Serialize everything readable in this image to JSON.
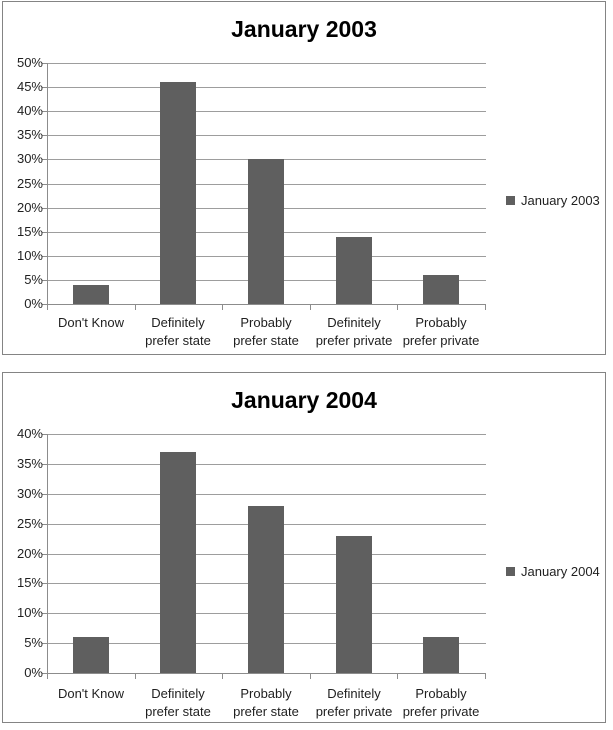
{
  "colors": {
    "bar": "#5f5f5f",
    "gridline": "#9d9d9d",
    "axis": "#8c8c8c",
    "panel_border": "#848484",
    "text": "#1f1f1f",
    "title": "#000000"
  },
  "chart_data": [
    {
      "type": "bar",
      "title": "January 2003",
      "categories": [
        "Don't Know",
        "Definitely prefer state",
        "Probably prefer state",
        "Definitely prefer private",
        "Probably prefer private"
      ],
      "category_lines": [
        [
          "Don't Know"
        ],
        [
          "Definitely",
          "prefer state"
        ],
        [
          "Probably",
          "prefer state"
        ],
        [
          "Definitely",
          "prefer private"
        ],
        [
          "Probably",
          "prefer private"
        ]
      ],
      "values": [
        4,
        46,
        30,
        14,
        6
      ],
      "unit": "%",
      "ylim": [
        0,
        50
      ],
      "ytick_step": 5,
      "yticks": [
        "0%",
        "5%",
        "10%",
        "15%",
        "20%",
        "25%",
        "30%",
        "35%",
        "40%",
        "45%",
        "50%"
      ],
      "xlabel": "",
      "ylabel": "",
      "grid": "horizontal",
      "legend": {
        "label": "January 2003",
        "position": "right"
      }
    },
    {
      "type": "bar",
      "title": "January 2004",
      "categories": [
        "Don't Know",
        "Definitely prefer state",
        "Probably prefer state",
        "Definitely prefer private",
        "Probably prefer private"
      ],
      "category_lines": [
        [
          "Don't Know"
        ],
        [
          "Definitely",
          "prefer state"
        ],
        [
          "Probably",
          "prefer state"
        ],
        [
          "Definitely",
          "prefer private"
        ],
        [
          "Probably",
          "prefer private"
        ]
      ],
      "values": [
        6,
        37,
        28,
        23,
        6
      ],
      "unit": "%",
      "ylim": [
        0,
        40
      ],
      "ytick_step": 5,
      "yticks": [
        "0%",
        "5%",
        "10%",
        "15%",
        "20%",
        "25%",
        "30%",
        "35%",
        "40%"
      ],
      "xlabel": "",
      "ylabel": "",
      "grid": "horizontal",
      "legend": {
        "label": "January 2004",
        "position": "right"
      }
    }
  ]
}
